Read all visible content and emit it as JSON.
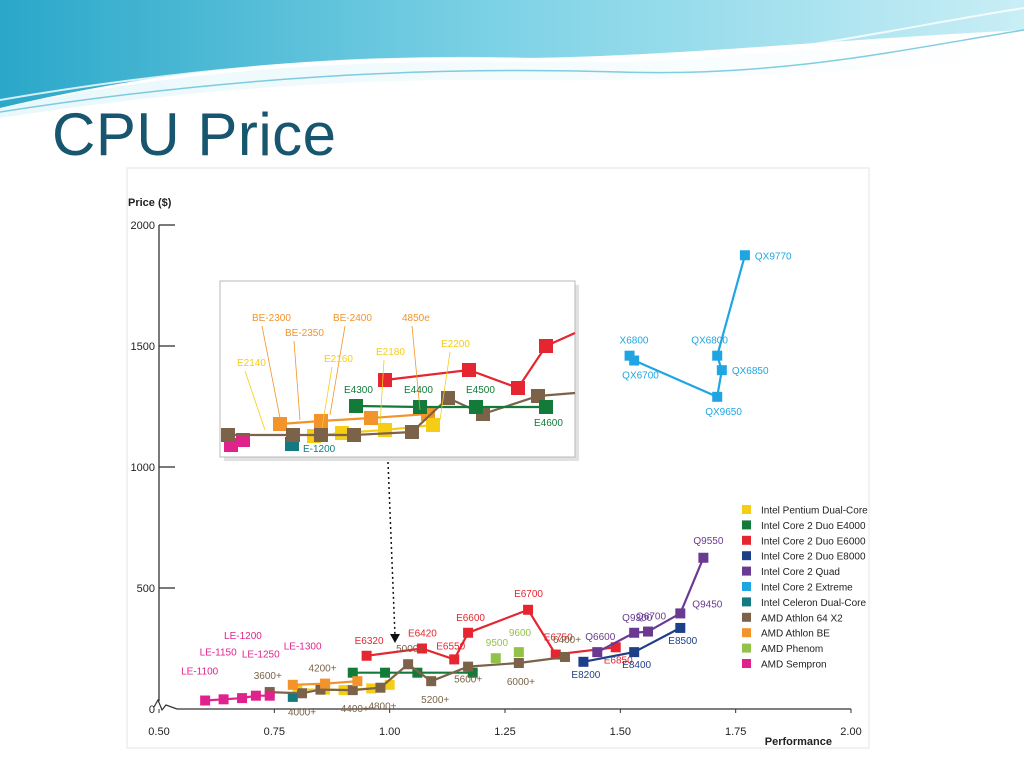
{
  "slide": {
    "title": "CPU Price"
  },
  "colors": {
    "title": "#17566e",
    "pentium": "#f6cd15",
    "e4000": "#137a3a",
    "e6000": "#e52530",
    "e8000": "#1d3f8a",
    "quad": "#6a3a92",
    "extreme": "#1fa6e2",
    "celeron": "#157a80",
    "athlon64": "#7b6248",
    "athlonbe": "#f2932c",
    "phenom": "#93c24a",
    "sempron": "#e0238c"
  },
  "chart_data": {
    "type": "scatter",
    "title": "",
    "xlabel": "Performance",
    "ylabel": "Price ($)",
    "xlim": [
      0.5,
      2.0
    ],
    "ylim": [
      0,
      2000
    ],
    "xticks": [
      "0.50",
      "0.75",
      "1.00",
      "1.25",
      "1.50",
      "1.75",
      "2.00"
    ],
    "yticks": [
      "0",
      "500",
      "1000",
      "1500",
      "2000"
    ],
    "legend_position": "right",
    "series": [
      {
        "name": "Intel Pentium Dual-Core",
        "key": "pentium",
        "connect": true,
        "points": [
          {
            "x": 0.8,
            "y": 80,
            "label": ""
          },
          {
            "x": 0.86,
            "y": 80,
            "label": ""
          },
          {
            "x": 0.9,
            "y": 78,
            "label": ""
          },
          {
            "x": 0.96,
            "y": 85,
            "label": ""
          },
          {
            "x": 1.0,
            "y": 100,
            "label": ""
          }
        ]
      },
      {
        "name": "Intel Core 2 Duo E4000",
        "key": "e4000",
        "connect": true,
        "points": [
          {
            "x": 0.92,
            "y": 150,
            "label": ""
          },
          {
            "x": 0.99,
            "y": 150,
            "label": ""
          },
          {
            "x": 1.06,
            "y": 150,
            "label": ""
          },
          {
            "x": 1.18,
            "y": 150,
            "label": ""
          }
        ]
      },
      {
        "name": "Intel Core 2 Duo E6000",
        "key": "e6000",
        "connect": true,
        "points": [
          {
            "x": 0.95,
            "y": 220,
            "label": "E6320"
          },
          {
            "x": 1.07,
            "y": 250,
            "label": "E6420"
          },
          {
            "x": 1.14,
            "y": 205,
            "label": "E6550"
          },
          {
            "x": 1.17,
            "y": 315,
            "label": "E6600"
          },
          {
            "x": 1.3,
            "y": 410,
            "label": "E6700"
          },
          {
            "x": 1.36,
            "y": 225,
            "label": "E6750"
          },
          {
            "x": 1.49,
            "y": 255,
            "label": "E6850"
          }
        ]
      },
      {
        "name": "Intel Core 2 Duo E8000",
        "key": "e8000",
        "connect": true,
        "points": [
          {
            "x": 1.42,
            "y": 195,
            "label": "E8200"
          },
          {
            "x": 1.53,
            "y": 235,
            "label": "E8400"
          },
          {
            "x": 1.63,
            "y": 335,
            "label": "E8500"
          }
        ]
      },
      {
        "name": "Intel Core 2 Quad",
        "key": "quad",
        "connect": true,
        "points": [
          {
            "x": 1.45,
            "y": 235,
            "label": "Q6600"
          },
          {
            "x": 1.53,
            "y": 315,
            "label": "Q9300"
          },
          {
            "x": 1.56,
            "y": 320,
            "label": "Q6700"
          },
          {
            "x": 1.63,
            "y": 395,
            "label": "Q9450"
          },
          {
            "x": 1.68,
            "y": 625,
            "label": "Q9550"
          }
        ]
      },
      {
        "name": "Intel Core 2 Extreme",
        "key": "extreme",
        "connect": true,
        "points": [
          {
            "x": 1.52,
            "y": 1460,
            "label": "X6800"
          },
          {
            "x": 1.53,
            "y": 1440,
            "label": "QX6700"
          },
          {
            "x": 1.71,
            "y": 1290,
            "label": "QX9650"
          },
          {
            "x": 1.72,
            "y": 1400,
            "label": "QX6850"
          },
          {
            "x": 1.71,
            "y": 1460,
            "label": "QX6800"
          },
          {
            "x": 1.77,
            "y": 1875,
            "label": "QX9770"
          }
        ]
      },
      {
        "name": "Intel Celeron Dual-Core",
        "key": "celeron",
        "connect": false,
        "points": [
          {
            "x": 0.79,
            "y": 50,
            "label": ""
          }
        ]
      },
      {
        "name": "AMD Athlon 64 X2",
        "key": "athlon64",
        "connect": true,
        "points": [
          {
            "x": 0.74,
            "y": 70,
            "label": "3600+"
          },
          {
            "x": 0.81,
            "y": 65,
            "label": "4000+"
          },
          {
            "x": 0.85,
            "y": 80,
            "label": "4200+"
          },
          {
            "x": 0.92,
            "y": 78,
            "label": "4400+"
          },
          {
            "x": 0.98,
            "y": 88,
            "label": "4800+"
          },
          {
            "x": 1.04,
            "y": 185,
            "label": "5000+"
          },
          {
            "x": 1.09,
            "y": 115,
            "label": "5200+"
          },
          {
            "x": 1.17,
            "y": 175,
            "label": "5600+"
          },
          {
            "x": 1.28,
            "y": 190,
            "label": "6000+"
          },
          {
            "x": 1.38,
            "y": 215,
            "label": "6400+"
          }
        ]
      },
      {
        "name": "AMD Athlon BE",
        "key": "athlonbe",
        "connect": true,
        "points": [
          {
            "x": 0.79,
            "y": 100,
            "label": ""
          },
          {
            "x": 0.86,
            "y": 105,
            "label": ""
          },
          {
            "x": 0.93,
            "y": 115,
            "label": ""
          }
        ]
      },
      {
        "name": "AMD Phenom",
        "key": "phenom",
        "connect": false,
        "points": [
          {
            "x": 1.23,
            "y": 210,
            "label": "9500"
          },
          {
            "x": 1.28,
            "y": 235,
            "label": "9600"
          }
        ]
      },
      {
        "name": "AMD Sempron",
        "key": "sempron",
        "connect": true,
        "points": [
          {
            "x": 0.6,
            "y": 35,
            "label": "LE-1100"
          },
          {
            "x": 0.64,
            "y": 40,
            "label": "LE-1150"
          },
          {
            "x": 0.68,
            "y": 45,
            "label": "LE-1200"
          },
          {
            "x": 0.71,
            "y": 55,
            "label": "LE-1250"
          },
          {
            "x": 0.74,
            "y": 55,
            "label": "LE-1300"
          }
        ]
      }
    ],
    "inset": {
      "labels": [
        "BE-2300",
        "BE-2350",
        "BE-2400",
        "4850e",
        "E2140",
        "E2160",
        "E2180",
        "E2200",
        "E4300",
        "E4400",
        "E4500",
        "E4600",
        "E-1200"
      ]
    }
  }
}
